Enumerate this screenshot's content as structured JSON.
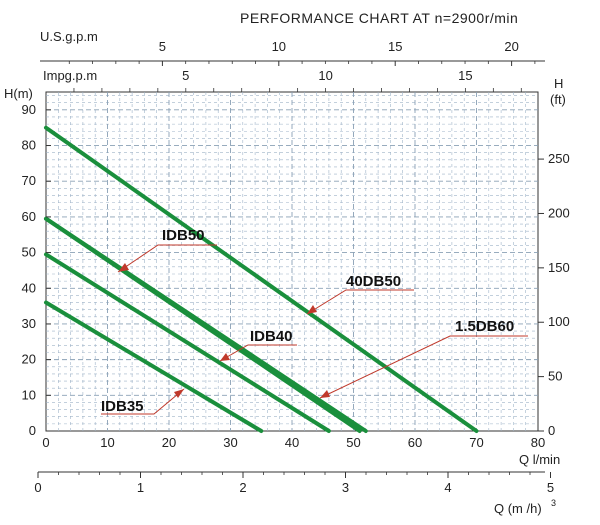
{
  "chart_data": {
    "type": "line",
    "title": "PERFORMANCE CHART AT n=2900r/min",
    "x_axis": {
      "label": "Q l/min",
      "min": 0,
      "max": 80,
      "ticks": [
        0,
        10,
        20,
        30,
        40,
        50,
        60,
        70,
        80
      ]
    },
    "y_axis": {
      "label": "H(m)",
      "min": 0,
      "max": 95,
      "ticks": [
        0,
        10,
        20,
        30,
        40,
        50,
        60,
        70,
        80,
        90
      ]
    },
    "y_axis_right": {
      "label_top": "H",
      "label_bottom": "(ft)",
      "ticks": [
        0,
        50,
        100,
        150,
        200,
        250
      ]
    },
    "x_axis_top_usgpm": {
      "label": "U.S.g.p.m",
      "ticks": [
        5,
        10,
        15,
        20
      ]
    },
    "x_axis_top_impgpm": {
      "label": "Impg.p.m",
      "ticks": [
        5,
        10,
        15
      ]
    },
    "x_axis_bottom_m3h": {
      "label": "Q (m /h)",
      "exponent": "3",
      "ticks": [
        0,
        1,
        2,
        3,
        4,
        5
      ]
    },
    "grid": true,
    "series": [
      {
        "name": "IDB35",
        "x": [
          0,
          35
        ],
        "y": [
          36,
          0
        ]
      },
      {
        "name": "IDB40",
        "x": [
          0,
          46
        ],
        "y": [
          49.5,
          0
        ]
      },
      {
        "name": "IDB50",
        "x": [
          0,
          51
        ],
        "y": [
          59.5,
          0
        ]
      },
      {
        "name": "1.5DB60",
        "x": [
          0,
          52
        ],
        "y": [
          59.5,
          0
        ]
      },
      {
        "name": "40DB50",
        "x": [
          0,
          70
        ],
        "y": [
          85,
          0
        ]
      }
    ],
    "series_color": "#1a8f3c"
  }
}
